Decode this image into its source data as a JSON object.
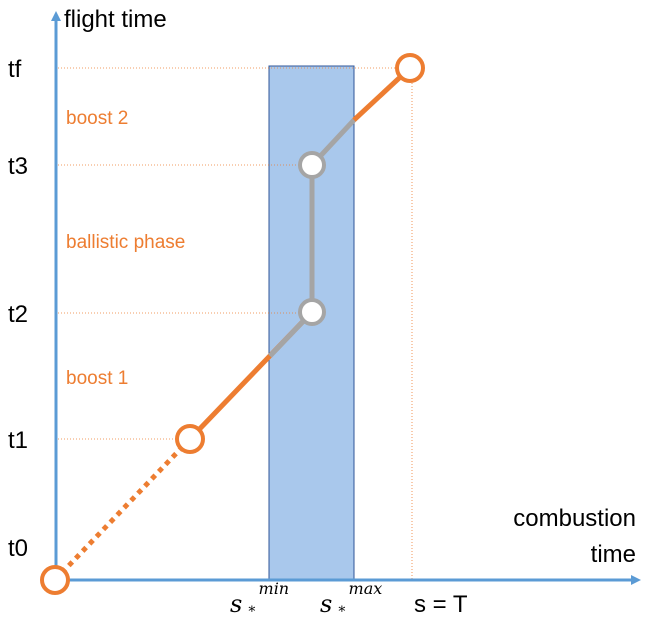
{
  "y_axis_label": "flight time",
  "x_axis_label_line1": "combustion",
  "x_axis_label_line2": "time",
  "y_ticks": [
    "tf",
    "t3",
    "t2",
    "t1",
    "t0"
  ],
  "phase_labels": [
    "boost 2",
    "ballistic phase",
    "boost 1"
  ],
  "x_ticks": {
    "s_min_base": "s",
    "s_min_sub": "*",
    "s_min_sup": "min",
    "s_max_base": "s",
    "s_max_sub": "*",
    "s_max_sup": "max",
    "s_T": "s = T"
  },
  "colors": {
    "axis": "#5b9bd5",
    "boost": "#ed7d31",
    "ballistic": "#a5a5a5",
    "band_fill": "#a9c8ec",
    "band_stroke": "#2f5597"
  }
}
